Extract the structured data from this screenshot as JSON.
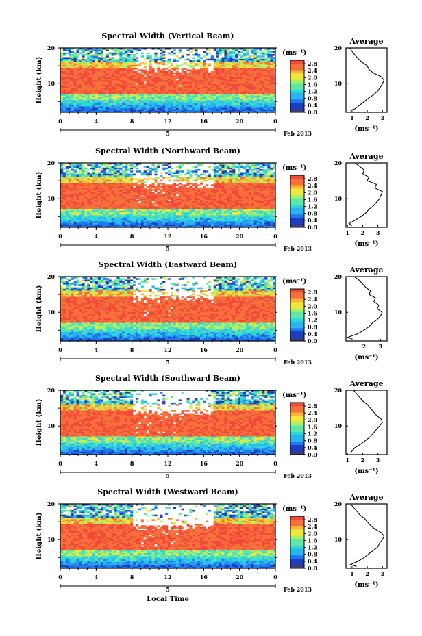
{
  "chart_data": {
    "type": "heatmap",
    "x_tick_labels": [
      "0",
      "4",
      "8",
      "12",
      "16",
      "20",
      "0"
    ],
    "xlim": [
      0,
      24
    ],
    "y_tick_labels": [
      "10",
      "20"
    ],
    "ylim": [
      2,
      20
    ],
    "ylabel": "Height (km)",
    "xlabel": "Local Time",
    "date_axis": {
      "tick_label": "5",
      "month_label": "Feb 2013"
    },
    "colorbar": {
      "unit_label": "(ms⁻¹)",
      "ticks": [
        "0.0",
        "0.4",
        "0.8",
        "1.2",
        "1.6",
        "2.0",
        "2.4",
        "2.8"
      ],
      "range": [
        0,
        3.0
      ]
    },
    "profile_panel": {
      "title": "Average",
      "xlabel": "(ms⁻¹)",
      "ylim": [
        2,
        20
      ],
      "y_tick_labels": [
        "10",
        "20"
      ]
    },
    "panels": [
      {
        "title": "Spectral Width (Vertical Beam)",
        "profile_x_ticks": [
          "1",
          "2",
          "3"
        ],
        "profile_xlim": [
          0.6,
          3.3
        ],
        "profile": [
          [
            2.5,
            0.9
          ],
          [
            3,
            1.2
          ],
          [
            4,
            1.5
          ],
          [
            5,
            1.8
          ],
          [
            6,
            2.1
          ],
          [
            7,
            2.45
          ],
          [
            8,
            2.7
          ],
          [
            9,
            2.85
          ],
          [
            10,
            3.0
          ],
          [
            11,
            3.1
          ],
          [
            12,
            2.9
          ],
          [
            13,
            2.4
          ],
          [
            14,
            2.1
          ],
          [
            15,
            2.0
          ],
          [
            16,
            1.65
          ],
          [
            17,
            1.4
          ],
          [
            18,
            1.2
          ],
          [
            19,
            1.0
          ],
          [
            20,
            0.85
          ]
        ]
      },
      {
        "title": "Spectral Width (Northward Beam)",
        "profile_x_ticks": [
          "1",
          "2",
          "3"
        ],
        "profile_xlim": [
          0.9,
          3.6
        ],
        "profile": [
          [
            2.5,
            1.3
          ],
          [
            3,
            1.1
          ],
          [
            4,
            1.5
          ],
          [
            5,
            1.9
          ],
          [
            6,
            2.2
          ],
          [
            7,
            2.4
          ],
          [
            8,
            2.7
          ],
          [
            9,
            2.9
          ],
          [
            10,
            3.1
          ],
          [
            11,
            3.2
          ],
          [
            12,
            3.3
          ],
          [
            13,
            2.8
          ],
          [
            14,
            2.9
          ],
          [
            15,
            2.3
          ],
          [
            16,
            2.4
          ],
          [
            17,
            2.0
          ],
          [
            18,
            2.1
          ],
          [
            19,
            1.8
          ],
          [
            20,
            1.5
          ]
        ]
      },
      {
        "title": "Spectral Width (Eastward Beam)",
        "profile_x_ticks": [
          "2",
          "3"
        ],
        "profile_xlim": [
          0.9,
          3.4
        ],
        "profile": [
          [
            2.5,
            1.3
          ],
          [
            3,
            1.0
          ],
          [
            4,
            1.6
          ],
          [
            5,
            2.0
          ],
          [
            6,
            2.3
          ],
          [
            7,
            2.5
          ],
          [
            8,
            2.8
          ],
          [
            9,
            3.0
          ],
          [
            10,
            3.1
          ],
          [
            11,
            2.8
          ],
          [
            12,
            2.9
          ],
          [
            13,
            2.6
          ],
          [
            14,
            2.7
          ],
          [
            15,
            2.3
          ],
          [
            16,
            2.4
          ],
          [
            17,
            2.1
          ],
          [
            18,
            1.9
          ],
          [
            19,
            1.7
          ],
          [
            20,
            1.4
          ]
        ]
      },
      {
        "title": "Spectral Width (Southward Beam)",
        "profile_x_ticks": [
          "1",
          "2",
          "3"
        ],
        "profile_xlim": [
          0.9,
          3.6
        ],
        "profile": [
          [
            2.5,
            1.2
          ],
          [
            3,
            1.3
          ],
          [
            4,
            1.5
          ],
          [
            5,
            1.9
          ],
          [
            6,
            2.2
          ],
          [
            7,
            2.5
          ],
          [
            8,
            2.7
          ],
          [
            9,
            2.9
          ],
          [
            10,
            3.1
          ],
          [
            11,
            3.3
          ],
          [
            12,
            3.2
          ],
          [
            13,
            2.9
          ],
          [
            14,
            2.7
          ],
          [
            15,
            2.5
          ],
          [
            16,
            2.3
          ],
          [
            17,
            2.0
          ],
          [
            18,
            1.8
          ],
          [
            19,
            1.6
          ],
          [
            20,
            1.4
          ]
        ]
      },
      {
        "title": "Spectral Width (Westward Beam)",
        "profile_x_ticks": [
          "1",
          "2",
          "3"
        ],
        "profile_xlim": [
          0.6,
          3.3
        ],
        "profile": [
          [
            2.5,
            1.3
          ],
          [
            3,
            0.9
          ],
          [
            4,
            1.4
          ],
          [
            5,
            1.8
          ],
          [
            6,
            2.1
          ],
          [
            7,
            2.4
          ],
          [
            8,
            2.7
          ],
          [
            9,
            2.8
          ],
          [
            10,
            3.0
          ],
          [
            11,
            3.1
          ],
          [
            12,
            2.9
          ],
          [
            13,
            2.5
          ],
          [
            14,
            2.2
          ],
          [
            15,
            2.0
          ],
          [
            16,
            1.8
          ],
          [
            17,
            1.5
          ],
          [
            18,
            1.3
          ],
          [
            19,
            1.1
          ],
          [
            20,
            0.9
          ]
        ]
      }
    ]
  },
  "colors": {
    "ramp": [
      "#3a3a7a",
      "#1b3fbf",
      "#1e78f0",
      "#2ab4f0",
      "#2ed8d8",
      "#5fe6a8",
      "#a7f06a",
      "#f0e63c",
      "#f7b43a",
      "#f5703a",
      "#f24a3a"
    ],
    "frame": "#000000",
    "background": "#ffffff"
  }
}
